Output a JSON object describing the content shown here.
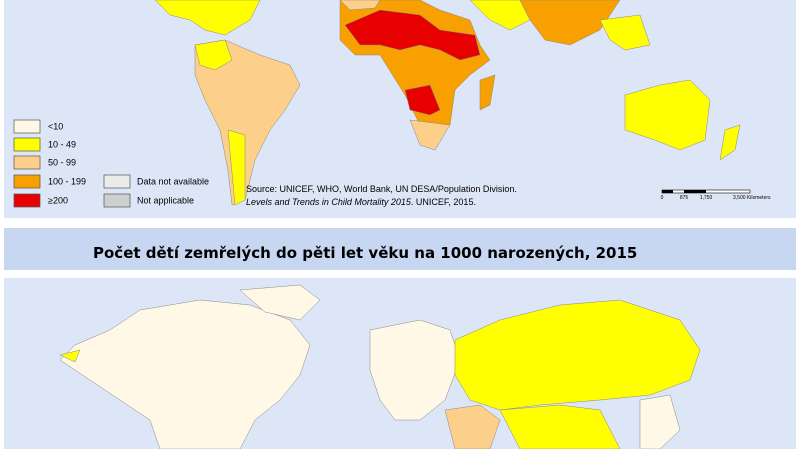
{
  "legend": {
    "items": [
      "<10",
      "10 - 49",
      "50 - 99",
      "100 - 199",
      "≥200"
    ],
    "extra": [
      "Data not available",
      "Not applicable"
    ]
  },
  "source": {
    "line1": "Source: UNICEF, WHO, World Bank, UN DESA/Population Division.",
    "line2_italic": "Levels and Trends in Child Mortality 2015",
    "line2_rest": ". UNICEF, 2015."
  },
  "scale": {
    "labels": [
      "0",
      "875",
      "1,750",
      "3,500 Kilometers"
    ]
  },
  "title": "Počet dětí zemřelých do pěti let věku na 1000 narozených, 2015"
}
